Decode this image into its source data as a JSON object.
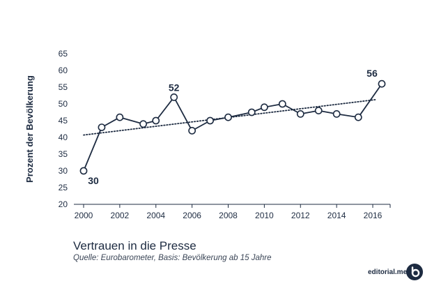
{
  "chart_data": {
    "type": "line",
    "title": "Vertrauen in die Presse",
    "subtitle": "Quelle: Eurobarometer, Basis: Bevölkerung ab 15 Jahre",
    "ylabel": "Prozent der Bevölkerung",
    "xlabel": "",
    "xlim": [
      2000,
      2016.5
    ],
    "ylim": [
      20,
      65
    ],
    "x_ticks": [
      2000,
      2002,
      2004,
      2006,
      2008,
      2010,
      2012,
      2014,
      2016
    ],
    "y_ticks": [
      20,
      25,
      30,
      35,
      40,
      45,
      50,
      55,
      60,
      65
    ],
    "grid": false,
    "series": [
      {
        "x": [
          2000,
          2001,
          2002,
          2003.3,
          2004,
          2005,
          2006,
          2007,
          2008,
          2009.3,
          2010,
          2011,
          2012,
          2013,
          2014,
          2015.2,
          2016.5
        ],
        "values": [
          30,
          43,
          46,
          44,
          45,
          52,
          42,
          45,
          46,
          47.5,
          49,
          50,
          47,
          48,
          47,
          46,
          56
        ]
      }
    ],
    "trendline": {
      "style": "dotted",
      "x": [
        2000,
        2016.2
      ],
      "y": [
        40.7,
        51.3
      ]
    },
    "data_labels": [
      {
        "x": 2000,
        "y": 30,
        "text": "30"
      },
      {
        "x": 2005,
        "y": 52,
        "text": "52"
      },
      {
        "x": 2016.5,
        "y": 56,
        "text": "56"
      }
    ],
    "colors": {
      "line": "#1d2b41",
      "marker_fill": "#ffffff",
      "axis": "#1d2b41"
    }
  },
  "footer": {
    "brand": "editorial.media"
  }
}
